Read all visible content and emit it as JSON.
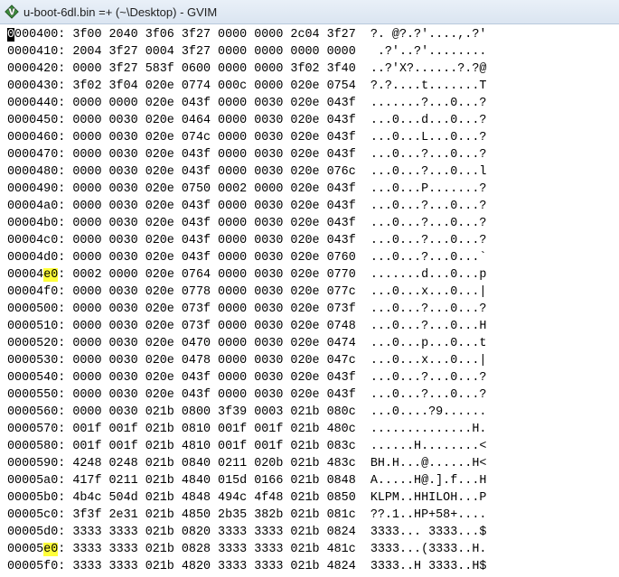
{
  "window": {
    "title": "u-boot-6dl.bin =+ (~\\Desktop) - GVIM",
    "icon": "gvim-icon"
  },
  "colors": {
    "search_highlight": "#ffff3a",
    "cursor": "#000000"
  },
  "editor": {
    "cursor_line": 0,
    "search_term": "e0",
    "lines": [
      {
        "off_pre": "",
        "off_hl": "",
        "off_post": "0000400:",
        "hex": "3f00 2040 3f06 3f27 0000 0000 2c04 3f27",
        "ascii": "?. @?.?'....,.?'"
      },
      {
        "off_pre": "0000410:",
        "off_hl": "",
        "off_post": "",
        "hex": "2004 3f27 0004 3f27 0000 0000 0000 0000",
        "ascii": " .?'..?'........"
      },
      {
        "off_pre": "0000420:",
        "off_hl": "",
        "off_post": "",
        "hex": "0000 3f27 583f 0600 0000 0000 3f02 3f40",
        "ascii": "..?'X?......?.?@"
      },
      {
        "off_pre": "0000430:",
        "off_hl": "",
        "off_post": "",
        "hex": "3f02 3f04 020e 0774 000c 0000 020e 0754",
        "ascii": "?.?....t.......T"
      },
      {
        "off_pre": "0000440:",
        "off_hl": "",
        "off_post": "",
        "hex": "0000 0000 020e 043f 0000 0030 020e 043f",
        "ascii": ".......?...0...?"
      },
      {
        "off_pre": "0000450:",
        "off_hl": "",
        "off_post": "",
        "hex": "0000 0030 020e 0464 0000 0030 020e 043f",
        "ascii": "...0...d...0...?"
      },
      {
        "off_pre": "0000460:",
        "off_hl": "",
        "off_post": "",
        "hex": "0000 0030 020e 074c 0000 0030 020e 043f",
        "ascii": "...0...L...0...?"
      },
      {
        "off_pre": "0000470:",
        "off_hl": "",
        "off_post": "",
        "hex": "0000 0030 020e 043f 0000 0030 020e 043f",
        "ascii": "...0...?...0...?"
      },
      {
        "off_pre": "0000480:",
        "off_hl": "",
        "off_post": "",
        "hex": "0000 0030 020e 043f 0000 0030 020e 076c",
        "ascii": "...0...?...0...l"
      },
      {
        "off_pre": "0000490:",
        "off_hl": "",
        "off_post": "",
        "hex": "0000 0030 020e 0750 0002 0000 020e 043f",
        "ascii": "...0...P.......?"
      },
      {
        "off_pre": "00004a0:",
        "off_hl": "",
        "off_post": "",
        "hex": "0000 0030 020e 043f 0000 0030 020e 043f",
        "ascii": "...0...?...0...?"
      },
      {
        "off_pre": "00004b0:",
        "off_hl": "",
        "off_post": "",
        "hex": "0000 0030 020e 043f 0000 0030 020e 043f",
        "ascii": "...0...?...0...?"
      },
      {
        "off_pre": "00004c0:",
        "off_hl": "",
        "off_post": "",
        "hex": "0000 0030 020e 043f 0000 0030 020e 043f",
        "ascii": "...0...?...0...?"
      },
      {
        "off_pre": "00004d0:",
        "off_hl": "",
        "off_post": "",
        "hex": "0000 0030 020e 043f 0000 0030 020e 0760",
        "ascii": "...0...?...0...`"
      },
      {
        "off_pre": "00004",
        "off_hl": "e0",
        "off_post": ":",
        "hex": "0002 0000 020e 0764 0000 0030 020e 0770",
        "ascii": ".......d...0...p"
      },
      {
        "off_pre": "00004f0:",
        "off_hl": "",
        "off_post": "",
        "hex": "0000 0030 020e 0778 0000 0030 020e 077c",
        "ascii": "...0...x...0...|"
      },
      {
        "off_pre": "0000500:",
        "off_hl": "",
        "off_post": "",
        "hex": "0000 0030 020e 073f 0000 0030 020e 073f",
        "ascii": "...0...?...0...?"
      },
      {
        "off_pre": "0000510:",
        "off_hl": "",
        "off_post": "",
        "hex": "0000 0030 020e 073f 0000 0030 020e 0748",
        "ascii": "...0...?...0...H"
      },
      {
        "off_pre": "0000520:",
        "off_hl": "",
        "off_post": "",
        "hex": "0000 0030 020e 0470 0000 0030 020e 0474",
        "ascii": "...0...p...0...t"
      },
      {
        "off_pre": "0000530:",
        "off_hl": "",
        "off_post": "",
        "hex": "0000 0030 020e 0478 0000 0030 020e 047c",
        "ascii": "...0...x...0...|"
      },
      {
        "off_pre": "0000540:",
        "off_hl": "",
        "off_post": "",
        "hex": "0000 0030 020e 043f 0000 0030 020e 043f",
        "ascii": "...0...?...0...?"
      },
      {
        "off_pre": "0000550:",
        "off_hl": "",
        "off_post": "",
        "hex": "0000 0030 020e 043f 0000 0030 020e 043f",
        "ascii": "...0...?...0...?"
      },
      {
        "off_pre": "0000560:",
        "off_hl": "",
        "off_post": "",
        "hex": "0000 0030 021b 0800 3f39 0003 021b 080c",
        "ascii": "...0....?9......"
      },
      {
        "off_pre": "0000570:",
        "off_hl": "",
        "off_post": "",
        "hex": "001f 001f 021b 0810 001f 001f 021b 480c",
        "ascii": "..............H."
      },
      {
        "off_pre": "0000580:",
        "off_hl": "",
        "off_post": "",
        "hex": "001f 001f 021b 4810 001f 001f 021b 083c",
        "ascii": "......H........<"
      },
      {
        "off_pre": "0000590:",
        "off_hl": "",
        "off_post": "",
        "hex": "4248 0248 021b 0840 0211 020b 021b 483c",
        "ascii": "BH.H...@......H<"
      },
      {
        "off_pre": "00005a0:",
        "off_hl": "",
        "off_post": "",
        "hex": "417f 0211 021b 4840 015d 0166 021b 0848",
        "ascii": "A.....H@.].f...H"
      },
      {
        "off_pre": "00005b0:",
        "off_hl": "",
        "off_post": "",
        "hex": "4b4c 504d 021b 4848 494c 4f48 021b 0850",
        "ascii": "KLPM..HHILOH...P"
      },
      {
        "off_pre": "00005c0:",
        "off_hl": "",
        "off_post": "",
        "hex": "3f3f 2e31 021b 4850 2b35 382b 021b 081c",
        "ascii": "??.1..HP+58+...."
      },
      {
        "off_pre": "00005d0:",
        "off_hl": "",
        "off_post": "",
        "hex": "3333 3333 021b 0820 3333 3333 021b 0824",
        "ascii": "3333... 3333...$"
      },
      {
        "off_pre": "00005",
        "off_hl": "e0",
        "off_post": ":",
        "hex": "3333 3333 021b 0828 3333 3333 021b 481c",
        "ascii": "3333...(3333..H."
      },
      {
        "off_pre": "00005f0:",
        "off_hl": "",
        "off_post": "",
        "hex": "3333 3333 021b 4820 3333 3333 021b 4824",
        "ascii": "3333..H 3333..H$"
      }
    ]
  }
}
